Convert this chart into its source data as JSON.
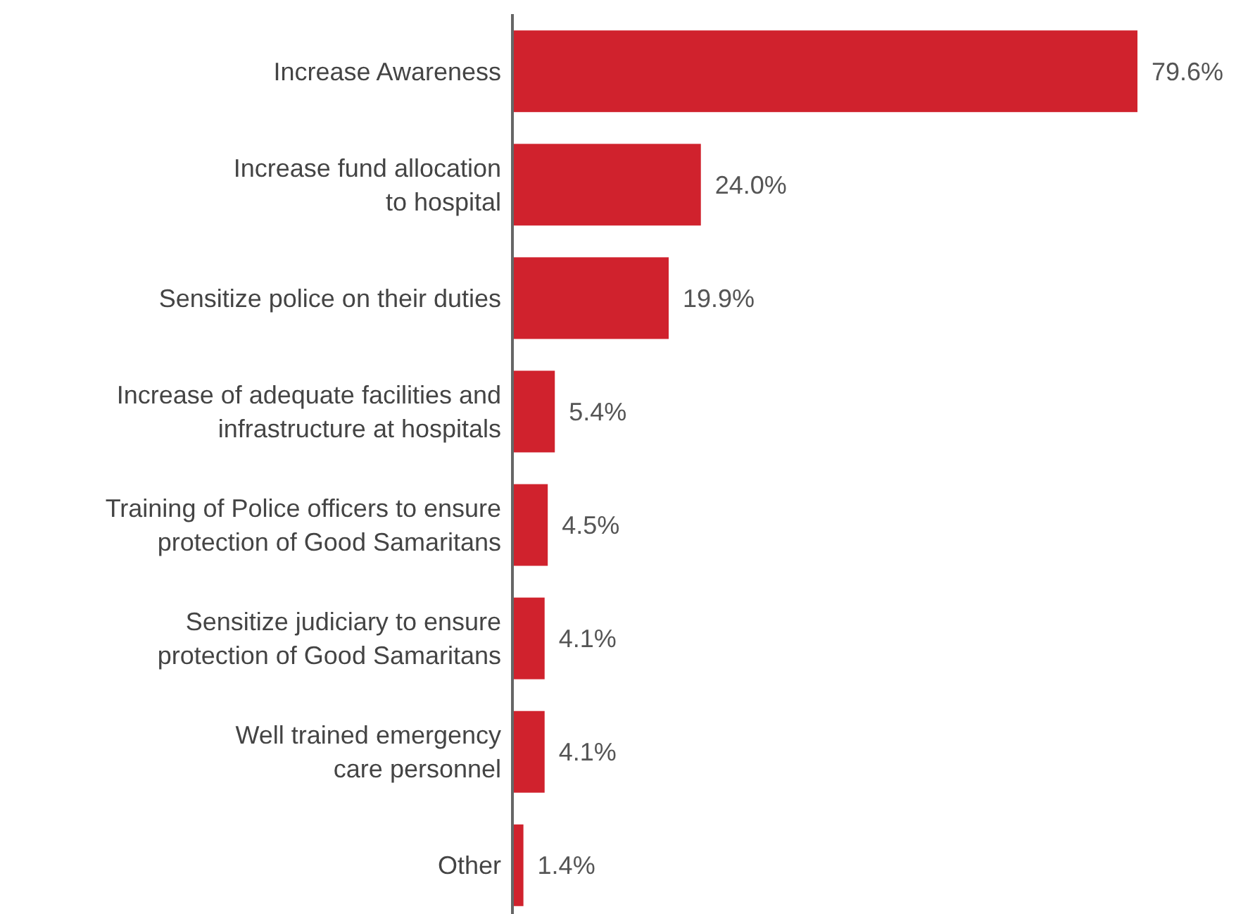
{
  "chart_data": {
    "type": "bar",
    "orientation": "horizontal",
    "categories": [
      "Increase Awareness",
      "Increase fund allocation\nto hospital",
      "Sensitize police on their duties",
      "Increase of adequate facilities and\ninfrastructure at hospitals",
      "Training of Police officers to ensure\nprotection of Good Samaritans",
      "Sensitize judiciary to ensure\nprotection of Good Samaritans",
      "Well trained emergency\ncare personnel",
      "Other"
    ],
    "values": [
      79.6,
      24.0,
      19.9,
      5.4,
      4.5,
      4.1,
      4.1,
      1.4
    ],
    "value_labels": [
      "79.6%",
      "24.0%",
      "19.9%",
      "5.4%",
      "4.5%",
      "4.1%",
      "4.1%",
      "1.4%"
    ],
    "color": "#d0222d"
  }
}
